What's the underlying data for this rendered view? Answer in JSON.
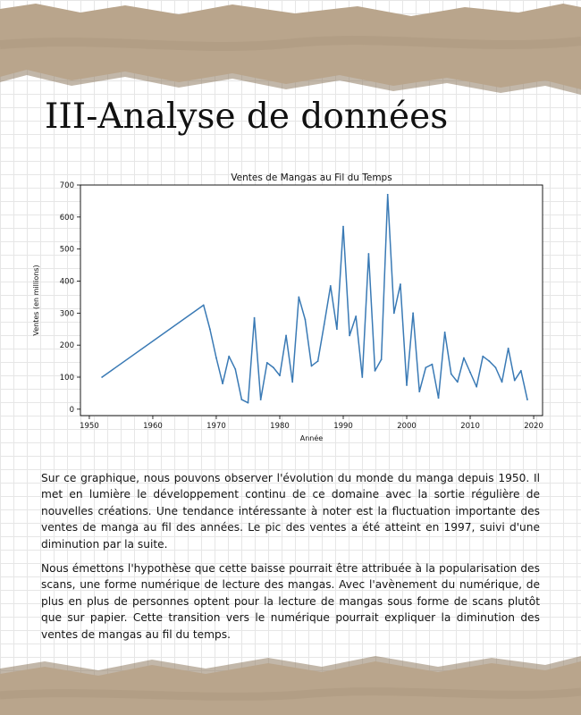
{
  "page": {
    "title": "III-Analyse de données",
    "paragraphs": [
      "Sur ce graphique, nous pouvons observer l'évolution du monde du manga depuis 1950. Il met en lumière le développement continu de ce domaine avec la sortie régulière de nouvelles créations. Une tendance intéressante à noter est la fluctuation importante des ventes de manga au fil des années. Le pic des ventes a été atteint en 1997, suivi d'une diminution par la suite.",
      "Nous émettons l'hypothèse que cette baisse pourrait être attribuée à la popularisation des scans, une forme numérique de lecture des mangas. Avec l'avènement du numérique, de plus en plus de personnes optent pour la lecture de mangas sous forme de scans plutôt que sur papier. Cette transition vers le numérique pourrait expliquer la diminution des ventes de mangas au fil du temps."
    ],
    "colors": {
      "paper_tape": "#b9a58c",
      "paper_tape_dark": "#8f7b63",
      "line": "#3a7ab5"
    }
  },
  "chart_data": {
    "type": "line",
    "title": "Ventes de Mangas au Fil du Temps",
    "xlabel": "Année",
    "ylabel": "Ventes (en millions)",
    "xlim": [
      1948.6,
      2021.4
    ],
    "ylim": [
      -20,
      700
    ],
    "x_ticks": [
      1950,
      1960,
      1970,
      1980,
      1990,
      2000,
      2010,
      2020
    ],
    "y_ticks": [
      0,
      100,
      200,
      300,
      400,
      500,
      600,
      700
    ],
    "grid": false,
    "x": [
      1952,
      1968,
      1969,
      1970,
      1971,
      1972,
      1973,
      1974,
      1975,
      1976,
      1977,
      1978,
      1979,
      1980,
      1981,
      1982,
      1983,
      1984,
      1985,
      1986,
      1987,
      1988,
      1989,
      1990,
      1991,
      1992,
      1993,
      1994,
      1995,
      1996,
      1997,
      1998,
      1999,
      2000,
      2001,
      2002,
      2003,
      2004,
      2005,
      2006,
      2007,
      2008,
      2009,
      2010,
      2011,
      2012,
      2013,
      2014,
      2015,
      2016,
      2017,
      2018,
      2019
    ],
    "y": [
      100,
      325,
      250,
      160,
      80,
      165,
      125,
      30,
      20,
      285,
      30,
      145,
      130,
      105,
      230,
      85,
      350,
      280,
      135,
      150,
      265,
      385,
      250,
      570,
      230,
      290,
      100,
      485,
      120,
      155,
      670,
      300,
      390,
      75,
      300,
      55,
      130,
      140,
      35,
      240,
      110,
      85,
      160,
      115,
      70,
      165,
      150,
      130,
      85,
      190,
      90,
      120,
      30
    ]
  }
}
